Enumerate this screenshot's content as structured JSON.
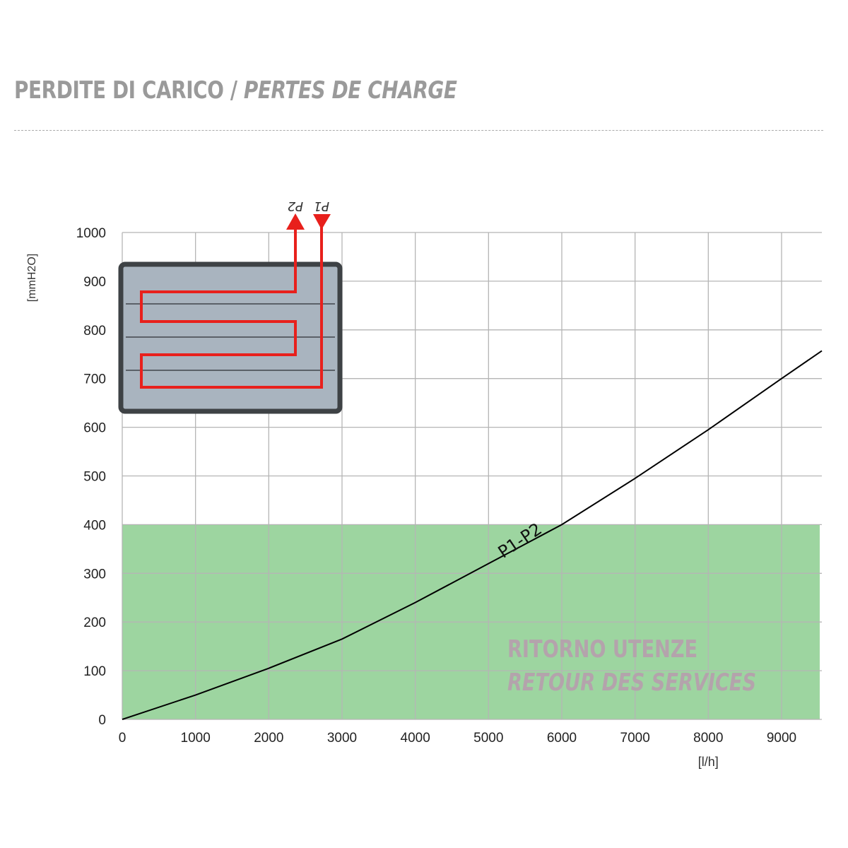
{
  "header": {
    "title_main": "PERDITE DI CARICO /",
    "title_italic": "PERTES DE CHARGE"
  },
  "chart_data": {
    "type": "line",
    "title": "PERDITE DI CARICO / PERTES DE CHARGE",
    "xlabel": "[l/h]",
    "ylabel": "[mmH2O]",
    "xlim": [
      0,
      9550
    ],
    "ylim": [
      0,
      1000
    ],
    "xticks": [
      0,
      1000,
      2000,
      3000,
      4000,
      5000,
      6000,
      7000,
      8000,
      9000
    ],
    "yticks": [
      0,
      100,
      200,
      300,
      400,
      500,
      600,
      700,
      800,
      900,
      1000
    ],
    "grid": true,
    "series": [
      {
        "name": "P1-P2",
        "color": "#000000",
        "x": [
          0,
          1000,
          2000,
          3000,
          4000,
          5000,
          6000,
          7000,
          8000,
          9000,
          9550
        ],
        "y": [
          0,
          50,
          105,
          165,
          240,
          320,
          400,
          495,
          595,
          700,
          757
        ]
      }
    ],
    "shaded_region": {
      "ymin": 0,
      "ymax": 400,
      "color": "#9dd5a0",
      "labels": [
        "RITORNO UTENZE",
        "RETOUR DES SERVICES"
      ]
    },
    "inset": {
      "labels": [
        "P1",
        "P2"
      ],
      "pipe_color": "#e8201c",
      "panel_color": "#a9b4bf"
    }
  }
}
